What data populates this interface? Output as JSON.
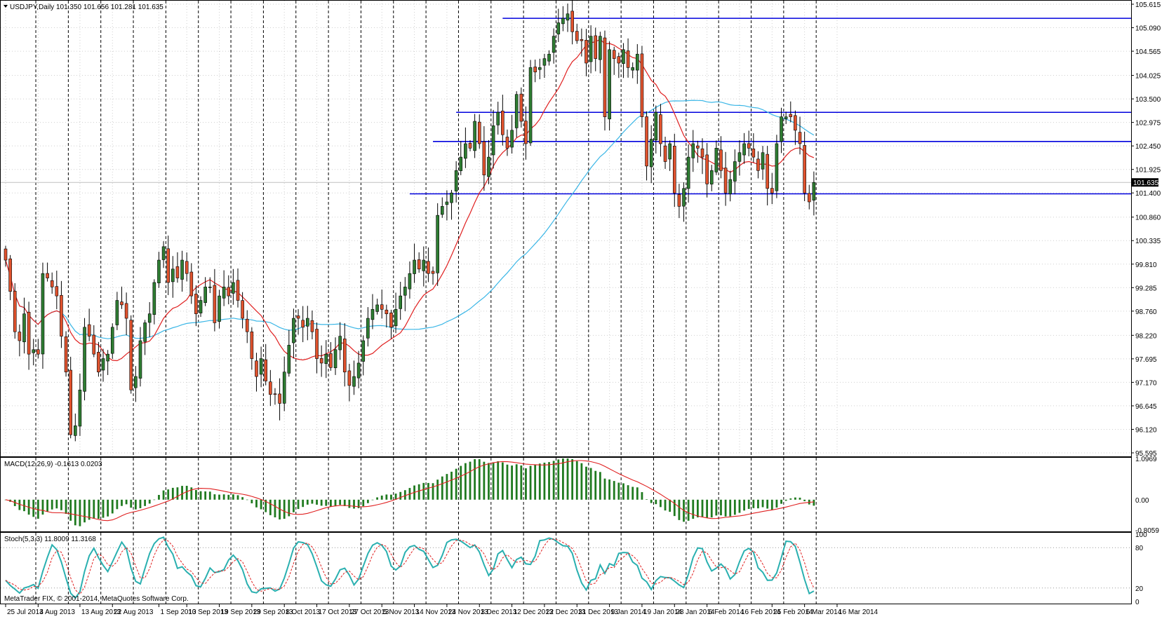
{
  "header": {
    "symbol_line": "USDJPY,Daily  101.350 101.656 101.281 101.635",
    "current_price": "101.635"
  },
  "watermark": "MetaTrader FIX, © 2001-2014, MetaQuotes Software Corp.",
  "colors": {
    "background": "#ffffff",
    "bull": "#2e7d32",
    "bear": "#e0522d",
    "sma_fast": "#e02020",
    "sma_slow": "#3ab6e6",
    "levels": "#0000dd",
    "macd_hist": "#1f7a1f",
    "macd_signal": "#e02020",
    "stoch_main": "#2ab0b0",
    "stoch_signal": "#e02020"
  },
  "chart_data": [
    {
      "type": "candlestick",
      "title": "USDJPY,Daily  101.350 101.656 101.281 101.635",
      "ylim": [
        95.595,
        105.615
      ],
      "y_ticks": [
        "105.615",
        "105.090",
        "104.565",
        "104.025",
        "103.500",
        "102.975",
        "102.450",
        "101.925",
        "101.400",
        "100.860",
        "100.335",
        "99.810",
        "99.285",
        "98.760",
        "98.220",
        "97.695",
        "97.170",
        "96.645",
        "96.120",
        "95.595"
      ],
      "y_tick_values": [
        105.615,
        105.09,
        104.565,
        104.025,
        103.5,
        102.975,
        102.45,
        101.925,
        101.4,
        100.86,
        100.335,
        99.81,
        99.285,
        98.76,
        98.22,
        97.695,
        97.17,
        96.645,
        96.12,
        95.595
      ],
      "x_ticks": [
        "25 Jul 2013",
        "4 Aug 2013",
        "13 Aug 2013",
        "22 Aug 2013",
        "1 Sep 2013",
        "10 Sep 2013",
        "19 Sep 2013",
        "29 Sep 2013",
        "8 Oct 2013",
        "17 Oct 2013",
        "27 Oct 2013",
        "5 Nov 2013",
        "14 Nov 2013",
        "24 Nov 2013",
        "3 Dec 2013",
        "12 Dec 2013",
        "22 Dec 2013",
        "31 Dec 2013",
        "9 Jan 2014",
        "19 Jan 2014",
        "28 Jan 2014",
        "6 Feb 2014",
        "16 Feb 2014",
        "25 Feb 2014",
        "6 Mar 2014",
        "16 Mar 2014"
      ],
      "x_tick_bars": [
        0,
        7,
        16,
        23,
        33,
        39,
        46,
        53,
        60,
        67,
        74,
        81,
        88,
        95,
        102,
        109,
        116,
        123,
        130,
        137,
        144,
        151,
        158,
        165,
        172,
        179
      ],
      "separator_bars": [
        6,
        13,
        20,
        27,
        34,
        41,
        48,
        55,
        62,
        69,
        76,
        83,
        90,
        97,
        104,
        111,
        118,
        125,
        132,
        139,
        146,
        153,
        160,
        167,
        174
      ],
      "closes": [
        99.9,
        99.2,
        98.3,
        98.1,
        98.7,
        97.8,
        97.9,
        97.8,
        99.6,
        99.5,
        99.3,
        99.1,
        98.2,
        97.4,
        96.0,
        96.2,
        97.0,
        98.4,
        98.2,
        97.8,
        97.4,
        97.7,
        97.8,
        98.4,
        99.0,
        98.9,
        98.6,
        97.0,
        97.3,
        98.1,
        98.5,
        98.7,
        99.4,
        99.9,
        100.2,
        99.4,
        99.7,
        99.5,
        99.9,
        99.6,
        99.1,
        98.7,
        99.0,
        99.3,
        99.3,
        98.5,
        99.1,
        99.3,
        99.1,
        99.4,
        99.0,
        98.6,
        98.3,
        97.7,
        97.3,
        97.7,
        97.2,
        96.9,
        96.9,
        96.7,
        97.4,
        98.0,
        98.6,
        98.6,
        98.4,
        98.6,
        98.3,
        97.7,
        97.6,
        97.8,
        97.5,
        97.9,
        98.2,
        97.4,
        97.1,
        97.3,
        97.6,
        98.1,
        98.6,
        98.8,
        98.9,
        98.8,
        98.7,
        98.4,
        98.8,
        99.1,
        99.3,
        99.6,
        99.9,
        99.7,
        99.9,
        99.6,
        99.6,
        100.9,
        101.1,
        101.2,
        101.4,
        101.9,
        102.2,
        102.5,
        102.4,
        103.0,
        102.5,
        101.8,
        102.2,
        102.9,
        103.2,
        102.7,
        102.4,
        102.8,
        103.6,
        103.0,
        102.5,
        104.2,
        104.1,
        104.2,
        104.4,
        104.5,
        104.9,
        105.2,
        105.3,
        105.4,
        105.0,
        104.8,
        104.8,
        104.3,
        104.9,
        104.4,
        104.9,
        103.1,
        104.6,
        104.4,
        104.3,
        104.6,
        104.2,
        104.2,
        104.5,
        103.1,
        102.0,
        102.6,
        103.2,
        102.5,
        102.1,
        102.5,
        101.4,
        101.1,
        101.5,
        102.2,
        102.5,
        102.4,
        102.2,
        101.6,
        101.9,
        102.4,
        101.9,
        101.4,
        101.7,
        102.1,
        102.3,
        102.5,
        102.4,
        102.2,
        101.9,
        102.3,
        101.5,
        101.4,
        102.5,
        103.1,
        103.1,
        103.1,
        102.8,
        102.5,
        101.4,
        101.2,
        101.635
      ],
      "sma_fast_period": 13,
      "sma_slow_period": 50,
      "levels": [
        {
          "price": 105.3,
          "from_bar": 107
        },
        {
          "price": 103.2,
          "from_bar": 97
        },
        {
          "price": 102.55,
          "from_bar": 92
        },
        {
          "price": 101.38,
          "from_bar": 87
        }
      ]
    },
    {
      "type": "bar",
      "title": "MACD(12,26,9) -0.1613 0.0203",
      "ylim": [
        -0.8059,
        1.0969
      ],
      "y_ticks": [
        "1.0969",
        "0.00",
        "-0.8059"
      ],
      "y_tick_values": [
        1.0969,
        0.0,
        -0.8059
      ],
      "series": [
        {
          "name": "MACD",
          "role": "histogram"
        },
        {
          "name": "Signal",
          "role": "line"
        }
      ]
    },
    {
      "type": "line",
      "title": "Stoch(5,3,3) 11.8009 11.3168",
      "ylim": [
        0,
        100
      ],
      "y_ticks": [
        "100",
        "80",
        "20",
        "0"
      ],
      "y_tick_values": [
        100,
        80,
        20,
        0
      ],
      "series": [
        {
          "name": "Stoch %K",
          "role": "main"
        },
        {
          "name": "Stoch %D",
          "role": "signal"
        }
      ]
    }
  ]
}
